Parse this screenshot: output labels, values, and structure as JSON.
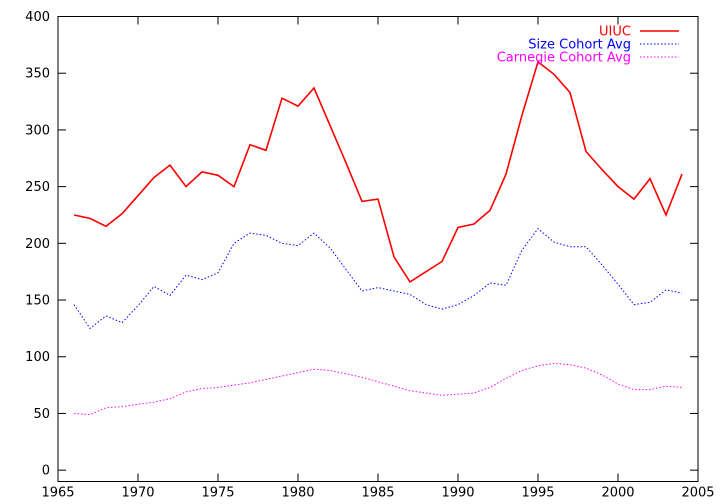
{
  "chart_data": {
    "type": "line",
    "title": "",
    "xlabel": "",
    "ylabel": "",
    "xlim": [
      1965,
      2005
    ],
    "ylim": [
      -10,
      400
    ],
    "xticks": [
      1965,
      1970,
      1975,
      1980,
      1985,
      1990,
      1995,
      2000,
      2005
    ],
    "yticks": [
      0,
      50,
      100,
      150,
      200,
      250,
      300,
      350,
      400
    ],
    "grid": false,
    "legend_position": "top-right",
    "series": [
      {
        "name": "UIUC",
        "color": "#ff0000",
        "style": "solid",
        "x": [
          1966,
          1967,
          1968,
          1969,
          1970,
          1971,
          1972,
          1973,
          1974,
          1975,
          1976,
          1977,
          1978,
          1979,
          1980,
          1981,
          1982,
          1983,
          1984,
          1985,
          1986,
          1987,
          1988,
          1989,
          1990,
          1991,
          1992,
          1993,
          1994,
          1995,
          1996,
          1997,
          1998,
          1999,
          2000,
          2001,
          2002,
          2003,
          2004
        ],
        "values": [
          225,
          222,
          215,
          226,
          242,
          258,
          269,
          250,
          263,
          260,
          250,
          287,
          282,
          328,
          321,
          337,
          304,
          271,
          237,
          239,
          188,
          166,
          175,
          184,
          214,
          217,
          229,
          261,
          313,
          360,
          349,
          333,
          281,
          265,
          250,
          239,
          257,
          225,
          261
        ]
      },
      {
        "name": "Size Cohort Avg",
        "color": "#0000ff",
        "style": "dotted",
        "x": [
          1966,
          1967,
          1968,
          1969,
          1970,
          1971,
          1972,
          1973,
          1974,
          1975,
          1976,
          1977,
          1978,
          1979,
          1980,
          1981,
          1982,
          1983,
          1984,
          1985,
          1986,
          1987,
          1988,
          1989,
          1990,
          1991,
          1992,
          1993,
          1994,
          1995,
          1996,
          1997,
          1998,
          1999,
          2000,
          2001,
          2002,
          2003,
          2004
        ],
        "values": [
          146,
          125,
          136,
          130,
          145,
          162,
          154,
          172,
          168,
          174,
          200,
          209,
          207,
          200,
          198,
          209,
          196,
          177,
          158,
          161,
          158,
          155,
          146,
          142,
          146,
          154,
          165,
          163,
          194,
          213,
          201,
          197,
          197,
          181,
          164,
          146,
          148,
          159,
          156
        ]
      },
      {
        "name": "Carnegie Cohort Avg",
        "color": "#ff00ff",
        "style": "dotted",
        "x": [
          1966,
          1967,
          1968,
          1969,
          1970,
          1971,
          1972,
          1973,
          1974,
          1975,
          1976,
          1977,
          1978,
          1979,
          1980,
          1981,
          1982,
          1983,
          1984,
          1985,
          1986,
          1987,
          1988,
          1989,
          1990,
          1991,
          1992,
          1993,
          1994,
          1995,
          1996,
          1997,
          1998,
          1999,
          2000,
          2001,
          2002,
          2003,
          2004
        ],
        "values": [
          50,
          49,
          55,
          56,
          58,
          60,
          63,
          69,
          72,
          73,
          75,
          77,
          80,
          83,
          86,
          89,
          88,
          85,
          82,
          78,
          74,
          70,
          68,
          66,
          67,
          68,
          73,
          81,
          88,
          92,
          94,
          93,
          90,
          84,
          76,
          71,
          71,
          74,
          73
        ]
      }
    ]
  }
}
